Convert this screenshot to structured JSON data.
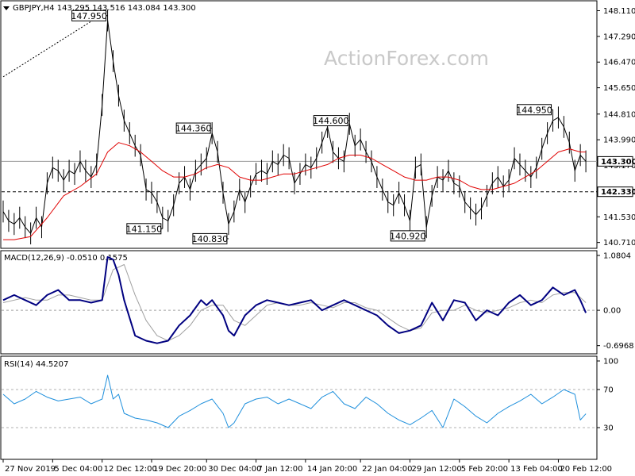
{
  "chart_data": [
    {
      "type": "line",
      "panel": "price",
      "title": "GBPJPY,H4  143.295 143.516 143.084 143.300",
      "watermark": "ActionForex.com",
      "y_ticks": [
        "148.110",
        "147.290",
        "146.470",
        "145.650",
        "144.810",
        "143.990",
        "143.170",
        "142.330",
        "141.530",
        "140.710"
      ],
      "ylim": [
        140.6,
        148.3
      ],
      "x_range": [
        0,
        107
      ],
      "price_label": "143.300",
      "support_label": "142.330",
      "support_level": 142.33,
      "current_price": 143.3,
      "trendline": [
        [
          0,
          146.0
        ],
        [
          19,
          148.1
        ]
      ],
      "callouts": [
        {
          "text": "147.950",
          "x": 19,
          "y": 147.95,
          "side": "left"
        },
        {
          "text": "141.150",
          "x": 29,
          "y": 141.15,
          "side": "left"
        },
        {
          "text": "144.360",
          "x": 38,
          "y": 144.36,
          "side": "left"
        },
        {
          "text": "140.830",
          "x": 41,
          "y": 140.83,
          "side": "left"
        },
        {
          "text": "144.600",
          "x": 63,
          "y": 144.6,
          "side": "left"
        },
        {
          "text": "140.920",
          "x": 77,
          "y": 140.92,
          "side": "left"
        },
        {
          "text": "144.950",
          "x": 100,
          "y": 144.95,
          "side": "left"
        }
      ],
      "series": [
        {
          "name": "GBPJPY",
          "color": "#000000",
          "x": [
            0,
            1,
            2,
            3,
            4,
            5,
            6,
            7,
            8,
            9,
            10,
            11,
            12,
            13,
            14,
            15,
            16,
            17,
            18,
            19,
            20,
            21,
            22,
            23,
            24,
            25,
            26,
            27,
            28,
            29,
            30,
            31,
            32,
            33,
            34,
            35,
            36,
            37,
            38,
            39,
            40,
            41,
            42,
            43,
            44,
            45,
            46,
            47,
            48,
            49,
            50,
            51,
            52,
            53,
            54,
            55,
            56,
            57,
            58,
            59,
            60,
            61,
            62,
            63,
            64,
            65,
            66,
            67,
            68,
            69,
            70,
            71,
            72,
            73,
            74,
            75,
            76,
            77,
            78,
            79,
            80,
            81,
            82,
            83,
            84,
            85,
            86,
            87,
            88,
            89,
            90,
            91,
            92,
            93,
            94,
            95,
            96,
            97,
            98,
            99,
            100,
            101,
            102,
            103,
            104,
            105,
            106
          ],
          "values": [
            141.7,
            141.4,
            141.3,
            141.5,
            141.2,
            141.0,
            141.5,
            141.2,
            142.6,
            143.1,
            143.0,
            142.7,
            143.0,
            142.9,
            143.3,
            143.0,
            142.8,
            143.2,
            145.1,
            147.8,
            146.5,
            145.4,
            144.6,
            144.2,
            143.8,
            143.5,
            142.4,
            142.3,
            142.0,
            141.5,
            141.4,
            141.9,
            142.6,
            142.8,
            142.4,
            143.0,
            143.2,
            143.4,
            144.2,
            143.6,
            142.3,
            141.3,
            141.7,
            142.4,
            142.0,
            142.5,
            142.9,
            143.0,
            142.9,
            143.3,
            143.2,
            143.5,
            143.4,
            142.6,
            142.9,
            143.2,
            143.1,
            143.4,
            143.9,
            144.4,
            143.6,
            143.4,
            143.3,
            144.5,
            143.8,
            144.0,
            143.6,
            143.3,
            142.8,
            142.4,
            142.0,
            141.9,
            142.3,
            141.9,
            141.4,
            143.1,
            143.2,
            141.2,
            142.2,
            142.8,
            142.7,
            143.0,
            142.6,
            142.5,
            142.0,
            141.8,
            141.6,
            141.8,
            142.2,
            142.6,
            142.8,
            142.5,
            142.7,
            143.4,
            143.2,
            143.0,
            142.8,
            143.1,
            143.7,
            144.2,
            144.6,
            144.7,
            144.4,
            143.9,
            143.0,
            143.5,
            143.3
          ]
        },
        {
          "name": "MA",
          "color": "#e00000",
          "x": [
            0,
            2,
            5,
            8,
            11,
            14,
            17,
            19,
            21,
            23,
            25,
            27,
            29,
            31,
            33,
            35,
            37,
            39,
            41,
            43,
            45,
            47,
            49,
            51,
            53,
            55,
            57,
            59,
            61,
            63,
            65,
            67,
            69,
            71,
            73,
            75,
            77,
            79,
            81,
            83,
            85,
            87,
            89,
            91,
            93,
            95,
            97,
            99,
            101,
            103,
            105,
            106
          ],
          "values": [
            140.8,
            140.8,
            140.9,
            141.5,
            142.2,
            142.5,
            142.9,
            143.6,
            143.9,
            143.8,
            143.6,
            143.3,
            143.0,
            142.8,
            142.8,
            142.9,
            143.1,
            143.2,
            143.1,
            142.8,
            142.7,
            142.7,
            142.8,
            142.9,
            142.9,
            143.0,
            143.1,
            143.2,
            143.4,
            143.5,
            143.5,
            143.4,
            143.2,
            143.0,
            142.8,
            142.7,
            142.7,
            142.8,
            142.8,
            142.7,
            142.5,
            142.4,
            142.4,
            142.5,
            142.6,
            142.8,
            143.0,
            143.3,
            143.6,
            143.7,
            143.6,
            143.6
          ]
        }
      ]
    },
    {
      "type": "line",
      "panel": "macd",
      "title": "MACD(12,26,9) -0.0510 0.1575",
      "y_ticks": [
        "1.0804",
        "0.00",
        "-0.6968"
      ],
      "ylim": [
        -0.78,
        1.08
      ],
      "x_range": [
        0,
        107
      ],
      "series": [
        {
          "name": "MACD",
          "color": "#000080",
          "x": [
            0,
            2,
            4,
            6,
            8,
            10,
            12,
            14,
            16,
            18,
            19,
            20,
            21,
            22,
            24,
            26,
            28,
            30,
            32,
            34,
            36,
            37,
            38,
            40,
            41,
            42,
            44,
            46,
            48,
            50,
            52,
            54,
            56,
            58,
            60,
            62,
            64,
            66,
            68,
            70,
            72,
            74,
            76,
            78,
            80,
            82,
            84,
            86,
            88,
            90,
            92,
            94,
            96,
            98,
            100,
            102,
            104,
            105,
            106
          ],
          "values": [
            0.2,
            0.3,
            0.2,
            0.1,
            0.3,
            0.4,
            0.2,
            0.2,
            0.15,
            0.2,
            1.05,
            1.0,
            0.7,
            0.2,
            -0.5,
            -0.6,
            -0.65,
            -0.6,
            -0.3,
            -0.1,
            0.2,
            0.1,
            0.2,
            -0.1,
            -0.4,
            -0.5,
            -0.1,
            0.1,
            0.2,
            0.15,
            0.1,
            0.15,
            0.2,
            0.0,
            0.1,
            0.2,
            0.1,
            0.0,
            -0.1,
            -0.3,
            -0.45,
            -0.4,
            -0.3,
            0.15,
            -0.2,
            0.2,
            0.15,
            -0.2,
            0.0,
            -0.1,
            0.15,
            0.3,
            0.1,
            0.2,
            0.45,
            0.3,
            0.4,
            0.2,
            -0.05
          ]
        },
        {
          "name": "Signal",
          "color": "#a0a0a0",
          "x": [
            0,
            2,
            4,
            6,
            8,
            10,
            12,
            14,
            16,
            18,
            20,
            22,
            24,
            26,
            28,
            30,
            32,
            34,
            36,
            38,
            40,
            42,
            44,
            46,
            48,
            50,
            52,
            54,
            56,
            58,
            60,
            62,
            64,
            66,
            68,
            70,
            72,
            74,
            76,
            78,
            80,
            82,
            84,
            86,
            88,
            90,
            92,
            94,
            96,
            98,
            100,
            102,
            104,
            106
          ],
          "values": [
            0.15,
            0.2,
            0.25,
            0.2,
            0.2,
            0.3,
            0.3,
            0.25,
            0.2,
            0.2,
            0.8,
            0.9,
            0.3,
            -0.2,
            -0.5,
            -0.6,
            -0.5,
            -0.3,
            0.0,
            0.1,
            0.1,
            -0.2,
            -0.3,
            -0.1,
            0.1,
            0.15,
            0.1,
            0.1,
            0.15,
            0.1,
            0.05,
            0.15,
            0.15,
            0.05,
            0.0,
            -0.15,
            -0.3,
            -0.4,
            -0.35,
            -0.05,
            0.0,
            0.0,
            0.1,
            0.0,
            -0.05,
            0.0,
            0.05,
            0.15,
            0.2,
            0.15,
            0.3,
            0.35,
            0.35,
            0.15
          ]
        }
      ]
    },
    {
      "type": "line",
      "panel": "rsi",
      "title": "RSI(14) 44.5207",
      "y_ticks": [
        "100",
        "70",
        "30"
      ],
      "levels": [
        70,
        30
      ],
      "ylim": [
        0,
        100
      ],
      "x_range": [
        0,
        107
      ],
      "series": [
        {
          "name": "RSI",
          "color": "#1e8fdc",
          "x": [
            0,
            2,
            4,
            6,
            8,
            10,
            12,
            14,
            16,
            18,
            19,
            20,
            21,
            22,
            24,
            26,
            28,
            30,
            32,
            34,
            36,
            38,
            40,
            41,
            42,
            44,
            46,
            48,
            50,
            52,
            54,
            56,
            58,
            60,
            62,
            64,
            66,
            68,
            70,
            72,
            74,
            76,
            78,
            80,
            82,
            84,
            86,
            88,
            90,
            92,
            94,
            96,
            98,
            100,
            102,
            104,
            105,
            106
          ],
          "values": [
            65,
            55,
            60,
            68,
            62,
            58,
            60,
            62,
            55,
            60,
            85,
            60,
            65,
            45,
            40,
            38,
            35,
            30,
            42,
            48,
            55,
            60,
            45,
            30,
            35,
            55,
            60,
            62,
            55,
            60,
            55,
            50,
            62,
            68,
            55,
            50,
            62,
            55,
            45,
            38,
            33,
            40,
            48,
            30,
            60,
            52,
            42,
            35,
            45,
            52,
            58,
            65,
            55,
            62,
            70,
            65,
            38,
            44.5
          ]
        }
      ]
    }
  ],
  "x_labels": [
    {
      "text": "27 Nov 2019",
      "i": 0
    },
    {
      "text": "5 Dec 04:00",
      "i": 9
    },
    {
      "text": "12 Dec 12:00",
      "i": 18
    },
    {
      "text": "19 Dec 20:00",
      "i": 27
    },
    {
      "text": "30 Dec 04:00",
      "i": 37
    },
    {
      "text": "7 Jan 12:00",
      "i": 46
    },
    {
      "text": "14 Jan 20:00",
      "i": 55
    },
    {
      "text": "22 Jan 04:00",
      "i": 65
    },
    {
      "text": "29 Jan 12:00",
      "i": 74
    },
    {
      "text": "5 Feb 20:00",
      "i": 83
    },
    {
      "text": "13 Feb 04:00",
      "i": 92
    },
    {
      "text": "20 Feb 12:00",
      "i": 101
    }
  ],
  "colors": {
    "price_line": "#000000",
    "ma_line": "#e00000",
    "macd_line": "#000080",
    "signal_line": "#a0a0a0",
    "rsi_line": "#1e8fdc",
    "level_line": "#b0b0b0"
  }
}
